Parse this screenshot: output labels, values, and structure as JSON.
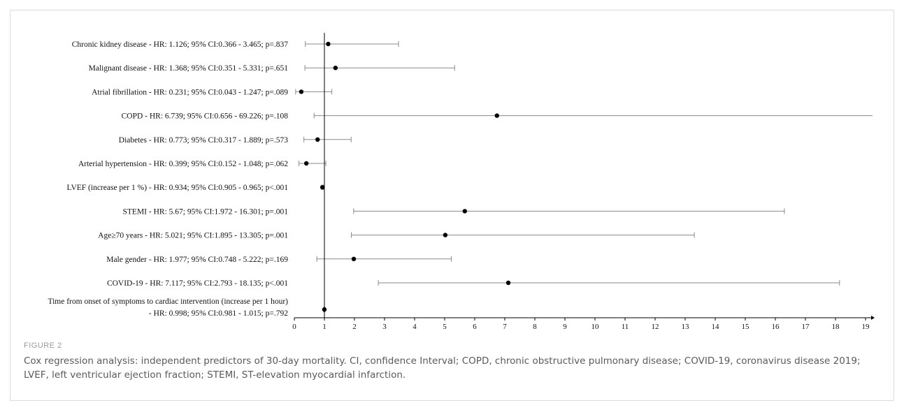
{
  "figure_label": "FIGURE 2",
  "caption": "Cox regression analysis: independent predictors of 30-day mortality. CI, confidence Interval; COPD, chronic obstructive pulmonary disease; COVID-19, coronavirus disease 2019; LVEF, left ventricular ejection fraction; STEMI, ST-elevation myocardial infarction.",
  "chart_data": {
    "type": "scatter",
    "subtype": "forest-plot",
    "reference_line_x": 1,
    "xlim": [
      0,
      19.3
    ],
    "x_ticks": [
      0,
      1,
      2,
      3,
      4,
      5,
      6,
      7,
      8,
      9,
      10,
      11,
      12,
      13,
      14,
      15,
      16,
      17,
      18,
      19
    ],
    "rows": [
      {
        "label_lines": [
          "Chronic kidney disease - HR: 1.126; 95% CI:0.366 - 3.465; p=.837"
        ],
        "hr": 1.126,
        "ci_low": 0.366,
        "ci_high": 3.465
      },
      {
        "label_lines": [
          "Malignant disease - HR: 1.368; 95% CI:0.351 - 5.331; p=.651"
        ],
        "hr": 1.368,
        "ci_low": 0.351,
        "ci_high": 5.331
      },
      {
        "label_lines": [
          "Atrial fibrillation - HR: 0.231; 95% CI:0.043 - 1.247; p=.089"
        ],
        "hr": 0.231,
        "ci_low": 0.043,
        "ci_high": 1.247
      },
      {
        "label_lines": [
          "COPD - HR: 6.739; 95% CI:0.656 - 69.226; p=.108"
        ],
        "hr": 6.739,
        "ci_low": 0.656,
        "ci_high": 69.226
      },
      {
        "label_lines": [
          "Diabetes - HR: 0.773; 95% CI:0.317 - 1.889; p=.573"
        ],
        "hr": 0.773,
        "ci_low": 0.317,
        "ci_high": 1.889
      },
      {
        "label_lines": [
          "Arterial hypertension - HR: 0.399; 95% CI:0.152 - 1.048; p=.062"
        ],
        "hr": 0.399,
        "ci_low": 0.152,
        "ci_high": 1.048
      },
      {
        "label_lines": [
          "LVEF (increase per 1 %) - HR: 0.934; 95% CI:0.905 - 0.965; p<.001"
        ],
        "hr": 0.934,
        "ci_low": 0.905,
        "ci_high": 0.965
      },
      {
        "label_lines": [
          "STEMI - HR: 5.67; 95% CI:1.972 - 16.301; p=.001"
        ],
        "hr": 5.67,
        "ci_low": 1.972,
        "ci_high": 16.301
      },
      {
        "label_lines": [
          "Age≥70 years - HR: 5.021; 95% CI:1.895 - 13.305; p=.001"
        ],
        "hr": 5.021,
        "ci_low": 1.895,
        "ci_high": 13.305
      },
      {
        "label_lines": [
          "Male gender - HR: 1.977; 95% CI:0.748 - 5.222; p=.169"
        ],
        "hr": 1.977,
        "ci_low": 0.748,
        "ci_high": 5.222
      },
      {
        "label_lines": [
          "COVID-19 - HR: 7.117; 95% CI:2.793 - 18.135; p<.001"
        ],
        "hr": 7.117,
        "ci_low": 2.793,
        "ci_high": 18.135
      },
      {
        "label_lines": [
          "Time from onset of symptoms to cardiac intervention (increase per 1 hour)",
          "- HR: 0.998; 95% CI:0.981 - 1.015; p=.792"
        ],
        "hr": 0.998,
        "ci_low": 0.981,
        "ci_high": 1.015
      }
    ],
    "grid": false,
    "colors": {
      "points": "#000000",
      "ci_lines": "#8a8a8a",
      "axis": "#000000"
    }
  }
}
